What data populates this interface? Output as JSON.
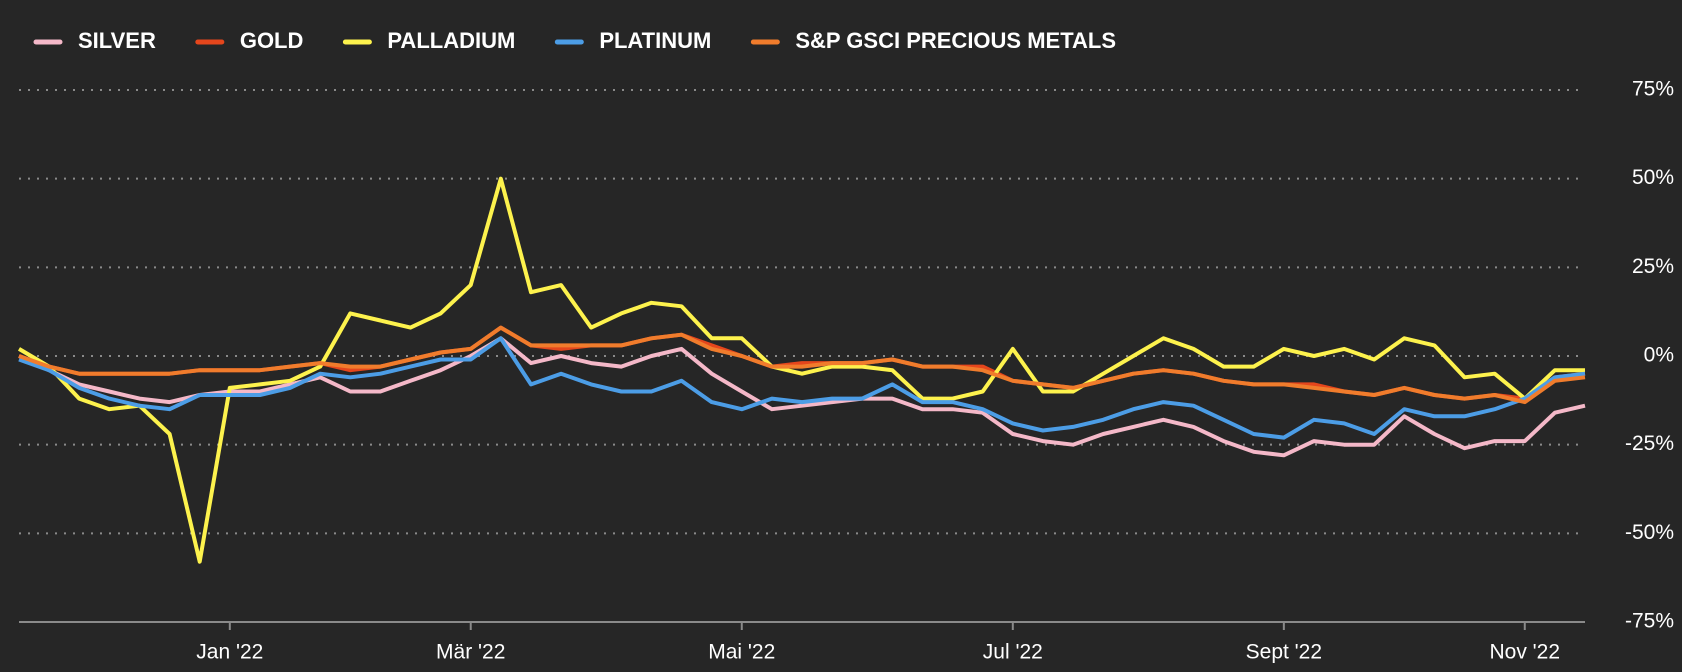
{
  "chart_data": {
    "type": "line",
    "categories": [
      null,
      null,
      null,
      null,
      null,
      null,
      null,
      "Jan '22",
      null,
      null,
      null,
      null,
      null,
      null,
      null,
      "Mär '22",
      null,
      null,
      null,
      null,
      null,
      null,
      null,
      null,
      "Mai '22",
      null,
      null,
      null,
      null,
      null,
      null,
      null,
      null,
      "Jul '22",
      null,
      null,
      null,
      null,
      null,
      null,
      null,
      null,
      "Sept '22",
      null,
      null,
      null,
      null,
      null,
      null,
      null,
      "Nov '22",
      null,
      null
    ],
    "series": [
      {
        "name": "SILVER",
        "color": "#f4b8c8",
        "values": [
          0,
          -4,
          -8,
          -10,
          -12,
          -13,
          -11,
          -10,
          -10,
          -8,
          -6,
          -10,
          -10,
          -7,
          -4,
          0,
          5,
          -2,
          0,
          -2,
          -3,
          0,
          2,
          -5,
          -10,
          -15,
          -14,
          -13,
          -12,
          -12,
          -15,
          -15,
          -16,
          -22,
          -24,
          -25,
          -22,
          -20,
          -18,
          -20,
          -24,
          -27,
          -28,
          -24,
          -25,
          -25,
          -17,
          -22,
          -26,
          -24,
          -24,
          -16,
          -14
        ]
      },
      {
        "name": "GOLD",
        "color": "#e5461c",
        "values": [
          0,
          -3,
          -5,
          -5,
          -5,
          -5,
          -4,
          -4,
          -4,
          -3,
          -2,
          -4,
          -3,
          -1,
          1,
          2,
          8,
          3,
          2,
          3,
          3,
          5,
          6,
          3,
          0,
          -3,
          -2,
          -2,
          -2,
          -1,
          -3,
          -3,
          -3,
          -7,
          -8,
          -9,
          -7,
          -5,
          -4,
          -5,
          -7,
          -8,
          -8,
          -8,
          -10,
          -11,
          -9,
          -11,
          -12,
          -11,
          -12,
          -6,
          -5
        ]
      },
      {
        "name": "PALLADIUM",
        "color": "#fdf24d",
        "values": [
          2,
          -3,
          -12,
          -15,
          -14,
          -22,
          -58,
          -9,
          -8,
          -7,
          -3,
          12,
          10,
          8,
          12,
          20,
          50,
          18,
          20,
          8,
          12,
          15,
          14,
          5,
          5,
          -3,
          -5,
          -3,
          -3,
          -4,
          -12,
          -12,
          -10,
          2,
          -10,
          -10,
          -5,
          0,
          5,
          2,
          -3,
          -3,
          2,
          0,
          2,
          -1,
          5,
          3,
          -6,
          -5,
          -12,
          -4,
          -4
        ]
      },
      {
        "name": "PLATINUM",
        "color": "#4c9de6",
        "values": [
          -1,
          -4,
          -9,
          -12,
          -14,
          -15,
          -11,
          -11,
          -11,
          -9,
          -5,
          -6,
          -5,
          -3,
          -1,
          -1,
          5,
          -8,
          -5,
          -8,
          -10,
          -10,
          -7,
          -13,
          -15,
          -12,
          -13,
          -12,
          -12,
          -8,
          -13,
          -13,
          -15,
          -19,
          -21,
          -20,
          -18,
          -15,
          -13,
          -14,
          -18,
          -22,
          -23,
          -18,
          -19,
          -22,
          -15,
          -17,
          -17,
          -15,
          -12,
          -6,
          -5
        ]
      },
      {
        "name": "S&P GSCI PRECIOUS METALS",
        "color": "#f07c2c",
        "values": [
          0,
          -3,
          -5,
          -5,
          -5,
          -5,
          -4,
          -4,
          -4,
          -3,
          -2,
          -3,
          -3,
          -1,
          1,
          2,
          8,
          3,
          3,
          3,
          3,
          5,
          6,
          2,
          0,
          -3,
          -3,
          -2,
          -2,
          -1,
          -3,
          -3,
          -4,
          -7,
          -8,
          -9,
          -7,
          -5,
          -4,
          -5,
          -7,
          -8,
          -8,
          -9,
          -10,
          -11,
          -9,
          -11,
          -12,
          -11,
          -13,
          -7,
          -6
        ]
      }
    ],
    "ylim": [
      -75,
      75
    ],
    "yticks": [
      {
        "value": -75,
        "label": "-75%"
      },
      {
        "value": -50,
        "label": "-50%"
      },
      {
        "value": -25,
        "label": "-25%"
      },
      {
        "value": 0,
        "label": "0%"
      },
      {
        "value": 25,
        "label": "25%"
      },
      {
        "value": 50,
        "label": "50%"
      },
      {
        "value": 75,
        "label": "75%"
      }
    ],
    "grid": true
  }
}
